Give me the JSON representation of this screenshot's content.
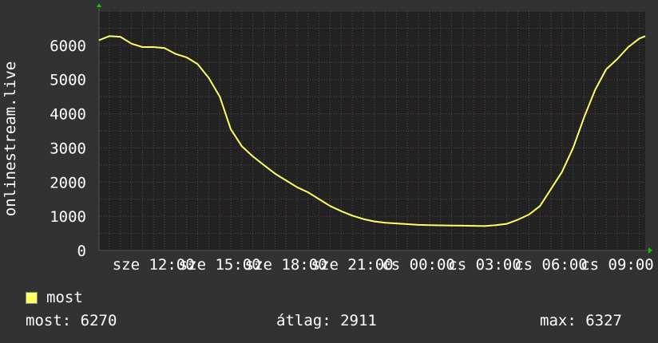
{
  "chart_data": {
    "type": "line",
    "ylabel": "onlinestream.live",
    "ylim": [
      0,
      7000
    ],
    "yticks": [
      0,
      1000,
      2000,
      3000,
      4000,
      5000,
      6000
    ],
    "xlim": [
      "sze 09:32",
      "cs 10:16"
    ],
    "xticks": [
      {
        "label": "sze 12:00",
        "t": "sze 12:00"
      },
      {
        "label": "sze 15:00",
        "t": "sze 15:00"
      },
      {
        "label": "sze 18:00",
        "t": "sze 18:00"
      },
      {
        "label": "sze 21:00",
        "t": "sze 21:00"
      },
      {
        "label": "cs 00:00",
        "t": "cs 00:00"
      },
      {
        "label": "cs 03:00",
        "t": "cs 03:00"
      },
      {
        "label": "cs 06:00",
        "t": "cs 06:00"
      },
      {
        "label": "cs 09:00",
        "t": "cs 09:00"
      }
    ],
    "grid": true,
    "series": [
      {
        "name": "most",
        "color": "#ffff66",
        "points": [
          [
            "sze 09:32",
            6150
          ],
          [
            "sze 10:00",
            6270
          ],
          [
            "sze 10:30",
            6250
          ],
          [
            "sze 11:00",
            6050
          ],
          [
            "sze 11:30",
            5950
          ],
          [
            "sze 12:00",
            5950
          ],
          [
            "sze 12:30",
            5920
          ],
          [
            "sze 13:00",
            5750
          ],
          [
            "sze 13:30",
            5650
          ],
          [
            "sze 14:00",
            5450
          ],
          [
            "sze 14:30",
            5050
          ],
          [
            "sze 15:00",
            4500
          ],
          [
            "sze 15:30",
            3550
          ],
          [
            "sze 16:00",
            3050
          ],
          [
            "sze 16:30",
            2750
          ],
          [
            "sze 17:00",
            2500
          ],
          [
            "sze 17:30",
            2250
          ],
          [
            "sze 18:00",
            2050
          ],
          [
            "sze 18:30",
            1850
          ],
          [
            "sze 19:00",
            1700
          ],
          [
            "sze 19:30",
            1500
          ],
          [
            "sze 20:00",
            1300
          ],
          [
            "sze 20:30",
            1150
          ],
          [
            "sze 21:00",
            1020
          ],
          [
            "sze 21:30",
            920
          ],
          [
            "sze 22:00",
            850
          ],
          [
            "sze 22:30",
            810
          ],
          [
            "sze 23:00",
            790
          ],
          [
            "sze 23:30",
            770
          ],
          [
            "cs 00:00",
            750
          ],
          [
            "cs 00:30",
            740
          ],
          [
            "cs 01:00",
            735
          ],
          [
            "cs 01:30",
            730
          ],
          [
            "cs 02:00",
            725
          ],
          [
            "cs 02:30",
            720
          ],
          [
            "cs 03:00",
            715
          ],
          [
            "cs 03:30",
            740
          ],
          [
            "cs 04:00",
            780
          ],
          [
            "cs 04:30",
            900
          ],
          [
            "cs 05:00",
            1050
          ],
          [
            "cs 05:30",
            1300
          ],
          [
            "cs 06:00",
            1800
          ],
          [
            "cs 06:30",
            2300
          ],
          [
            "cs 07:00",
            3000
          ],
          [
            "cs 07:30",
            3900
          ],
          [
            "cs 08:00",
            4700
          ],
          [
            "cs 08:30",
            5300
          ],
          [
            "cs 09:00",
            5600
          ],
          [
            "cs 09:30",
            5950
          ],
          [
            "cs 10:00",
            6200
          ],
          [
            "cs 10:16",
            6270
          ]
        ]
      }
    ]
  },
  "legend": {
    "series_name": "most",
    "swatch_color": "#ffff66",
    "current": "most: 6270",
    "average": "átlag: 2911",
    "max": "max: 6327"
  }
}
